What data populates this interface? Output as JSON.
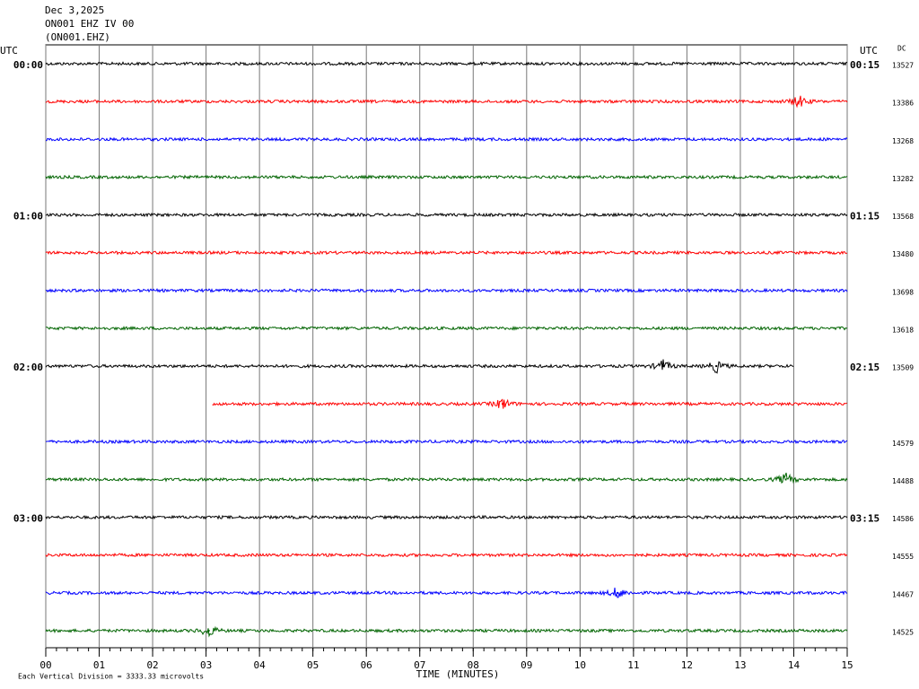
{
  "chart_data": {
    "type": "helicorder",
    "title": "Dec 3,2025",
    "subtitle": "ON001 EHZ IV 00",
    "station": "(ON001.EHZ)",
    "left_axis_label": "UTC",
    "right_axis_label": "UTC",
    "dc_label": "DC",
    "xlabel": "TIME (MINUTES)",
    "note": "Each Vertical Division = 3333.33 microvolts",
    "xlim": [
      0,
      15
    ],
    "xticks": [
      {
        "value": 0,
        "label": "00"
      },
      {
        "value": 1,
        "label": "01"
      },
      {
        "value": 2,
        "label": "02"
      },
      {
        "value": 3,
        "label": "03"
      },
      {
        "value": 4,
        "label": "04"
      },
      {
        "value": 5,
        "label": "05"
      },
      {
        "value": 6,
        "label": "06"
      },
      {
        "value": 7,
        "label": "07"
      },
      {
        "value": 8,
        "label": "08"
      },
      {
        "value": 9,
        "label": "09"
      },
      10,
      11,
      12,
      13,
      14,
      15
    ],
    "colors": [
      "#000000",
      "#ff0000",
      "#0000ff",
      "#006400"
    ],
    "rows": [
      {
        "left": "00:00",
        "right": "00:15",
        "dc": 13527,
        "start": 0,
        "end": 15,
        "events": []
      },
      {
        "left": null,
        "right": null,
        "dc": 13386,
        "start": 0,
        "end": 15,
        "events": [
          14.1
        ]
      },
      {
        "left": null,
        "right": null,
        "dc": 13268,
        "start": 0,
        "end": 15,
        "events": []
      },
      {
        "left": null,
        "right": null,
        "dc": 13282,
        "start": 0,
        "end": 15,
        "events": []
      },
      {
        "left": "01:00",
        "right": "01:15",
        "dc": 13568,
        "start": 0,
        "end": 15,
        "events": []
      },
      {
        "left": null,
        "right": null,
        "dc": 13480,
        "start": 0,
        "end": 15,
        "events": []
      },
      {
        "left": null,
        "right": null,
        "dc": 13698,
        "start": 0,
        "end": 15,
        "events": []
      },
      {
        "left": null,
        "right": null,
        "dc": 13618,
        "start": 0,
        "end": 15,
        "events": []
      },
      {
        "left": "02:00",
        "right": "02:15",
        "dc": 13509,
        "start": 0,
        "end": 14,
        "events": [
          11.55,
          12.55
        ]
      },
      {
        "left": null,
        "right": null,
        "dc": null,
        "start": 3.12,
        "end": 15,
        "events": [
          8.55
        ]
      },
      {
        "left": null,
        "right": null,
        "dc": 14579,
        "start": 0,
        "end": 15,
        "events": []
      },
      {
        "left": null,
        "right": null,
        "dc": 14488,
        "start": 0,
        "end": 15,
        "events": [
          13.85
        ]
      },
      {
        "left": "03:00",
        "right": "03:15",
        "dc": 14586,
        "start": 0,
        "end": 15,
        "events": []
      },
      {
        "left": null,
        "right": null,
        "dc": 14555,
        "start": 0,
        "end": 15,
        "events": []
      },
      {
        "left": null,
        "right": null,
        "dc": 14467,
        "start": 0,
        "end": 15,
        "events": [
          10.7
        ]
      },
      {
        "left": null,
        "right": null,
        "dc": 14525,
        "start": 0,
        "end": 15,
        "events": [
          3.05
        ]
      }
    ]
  }
}
